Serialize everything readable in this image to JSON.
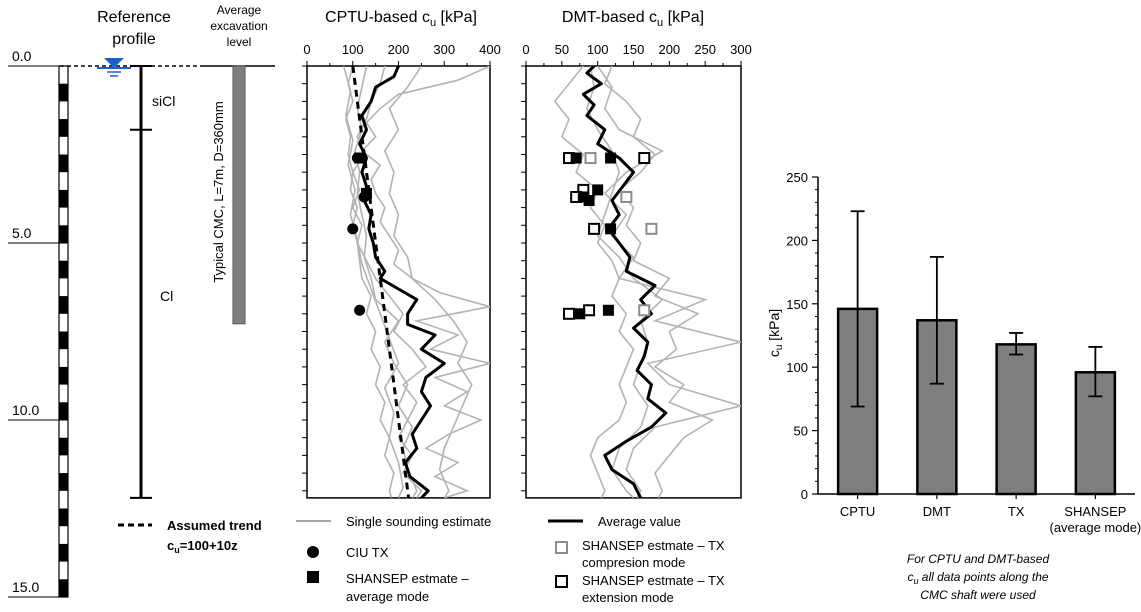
{
  "profile": {
    "title_line1": "Reference",
    "title_line2": "profile",
    "depth_labels": [
      "0.0",
      "5.0",
      "10.0",
      "15.0"
    ],
    "depth_values": [
      0,
      5,
      10,
      15
    ],
    "excavation_line1": "Average",
    "excavation_line2": "excavation",
    "excavation_line3": "level",
    "layer_sicl": "siCl",
    "layer_cl": "Cl",
    "layer_boundary_depth": 1.8,
    "profile_bottom_depth": 12.2,
    "cmc_label": "Typical CMC, L=7m, D=360mm",
    "cmc_length": 7,
    "water_table_icon": "water-table-triangle-icon",
    "colors": {
      "water": "#1f5fcc",
      "cmc": "#7f7f7f"
    }
  },
  "legend": {
    "assumed_trend": "Assumed trend",
    "trend_eq_prefix": "c",
    "trend_eq_sub": "u",
    "trend_eq_suffix": "=100+10z",
    "single_sounding": "Single sounding estimate",
    "average_value": "Average value",
    "ciu_tx": "CIU TX",
    "shansep_avg_line1": "SHANSEP estmate –",
    "shansep_avg_line2": "average mode",
    "shansep_comp_line1": "SHANSEP estmate – TX",
    "shansep_comp_line2": "compresion mode",
    "shansep_ext_line1": "SHANSEP estmate – TX",
    "shansep_ext_line2": "extension mode"
  },
  "chart_data": [
    {
      "type": "line",
      "title_prefix": "CPTU-based c",
      "title_sub": "u",
      "title_suffix": " [kPa]",
      "xlim": [
        0,
        400
      ],
      "xticks": [
        0,
        100,
        200,
        300,
        400
      ],
      "ylim": [
        0,
        12.2
      ],
      "trend": {
        "name": "Assumed trend",
        "intercept": 100,
        "slope": 10
      },
      "average": {
        "name": "Average value",
        "depth": [
          0,
          0.3,
          0.6,
          1.0,
          1.4,
          1.8,
          2.2,
          2.6,
          3.0,
          3.4,
          3.8,
          4.2,
          4.6,
          5.0,
          5.4,
          5.8,
          6.0,
          6.3,
          6.6,
          7.0,
          7.3,
          7.6,
          8.0,
          8.4,
          8.8,
          9.2,
          9.6,
          10.0,
          10.4,
          10.8,
          11.2,
          11.6,
          12.0,
          12.2
        ],
        "cu": [
          200,
          190,
          150,
          140,
          120,
          130,
          115,
          130,
          120,
          130,
          125,
          140,
          135,
          145,
          150,
          170,
          160,
          200,
          240,
          220,
          220,
          280,
          250,
          300,
          260,
          250,
          270,
          250,
          230,
          240,
          215,
          225,
          265,
          250
        ]
      },
      "soundings": [
        {
          "depth": [
            0,
            0.6,
            1.2,
            1.8,
            2.4,
            3.0,
            3.6,
            4.2,
            4.8,
            5.4,
            6.0,
            6.6,
            7.2,
            7.8,
            8.4,
            9.0,
            9.6,
            10.2,
            10.8,
            11.4,
            12.0,
            12.2
          ],
          "cu": [
            250,
            220,
            180,
            200,
            170,
            190,
            180,
            200,
            190,
            220,
            230,
            280,
            320,
            350,
            330,
            360,
            340,
            320,
            300,
            290,
            310,
            300
          ]
        },
        {
          "depth": [
            0,
            0.5,
            1.0,
            1.5,
            2.0,
            2.5,
            3.0,
            3.5,
            4.0,
            4.5,
            5.0,
            5.5,
            6.0,
            6.5,
            7.0,
            7.5,
            8.0,
            8.5,
            9.0,
            9.5,
            10.0,
            10.5,
            11.0,
            11.5,
            12.0,
            12.2
          ],
          "cu": [
            100,
            90,
            100,
            85,
            95,
            90,
            100,
            95,
            110,
            100,
            110,
            115,
            120,
            140,
            130,
            150,
            140,
            160,
            150,
            170,
            160,
            180,
            170,
            190,
            180,
            185
          ]
        },
        {
          "depth": [
            0,
            0.4,
            0.8,
            1.2,
            1.6,
            2.0,
            2.4,
            2.8,
            3.2,
            3.6,
            4.0,
            4.4,
            4.8,
            5.2,
            5.6,
            6.0,
            6.4,
            6.8,
            7.2,
            7.6,
            8.0,
            8.4,
            8.8,
            9.2,
            9.6,
            10.0,
            10.4,
            10.8,
            11.2,
            11.6,
            12.0,
            12.2
          ],
          "cu": [
            400,
            330,
            200,
            160,
            130,
            150,
            120,
            160,
            140,
            150,
            170,
            160,
            180,
            200,
            190,
            230,
            290,
            400,
            240,
            330,
            270,
            400,
            280,
            350,
            300,
            380,
            310,
            260,
            330,
            280,
            350,
            300
          ]
        },
        {
          "depth": [
            0,
            0.6,
            1.2,
            1.8,
            2.4,
            3.0,
            3.6,
            4.2,
            4.8,
            5.4,
            6.0,
            6.6,
            7.2,
            7.8,
            8.4,
            9.0,
            9.6,
            10.2,
            10.8,
            11.4,
            12.0,
            12.2
          ],
          "cu": [
            130,
            120,
            110,
            120,
            105,
            115,
            110,
            120,
            130,
            125,
            140,
            150,
            200,
            170,
            190,
            220,
            200,
            230,
            210,
            220,
            240,
            230
          ]
        },
        {
          "depth": [
            0,
            0.5,
            1.0,
            1.5,
            2.0,
            2.5,
            3.0,
            3.5,
            4.0,
            4.5,
            5.0,
            5.5,
            6.0,
            6.5,
            7.0,
            7.5,
            8.0,
            8.5,
            9.0,
            9.5,
            10.0,
            10.5,
            11.0,
            11.5,
            12.0,
            12.2
          ],
          "cu": [
            170,
            160,
            140,
            130,
            110,
            125,
            100,
            115,
            100,
            120,
            110,
            130,
            150,
            180,
            210,
            190,
            230,
            260,
            210,
            240,
            220,
            200,
            230,
            210,
            250,
            240
          ]
        },
        {
          "depth": [
            0,
            0.7,
            1.4,
            2.1,
            2.8,
            3.5,
            4.2,
            4.9,
            5.6,
            6.3,
            7.0,
            7.7,
            8.4,
            9.1,
            9.8,
            10.5,
            11.2,
            11.9,
            12.2
          ],
          "cu": [
            80,
            95,
            85,
            100,
            90,
            105,
            95,
            110,
            120,
            140,
            160,
            180,
            200,
            170,
            190,
            180,
            200,
            210,
            200
          ]
        }
      ],
      "ciu_tx": {
        "name": "CIU TX",
        "depth": [
          2.6,
          3.7,
          4.6,
          6.9
        ],
        "cu": [
          110,
          125,
          100,
          115
        ]
      },
      "shansep_avg": {
        "name": "SHANSEP estmate – average mode",
        "depth": [
          2.6,
          3.6
        ],
        "cu": [
          115,
          130
        ]
      }
    },
    {
      "type": "line",
      "title_prefix": "DMT-based c",
      "title_sub": "u",
      "title_suffix": " [kPa]",
      "xlim": [
        0,
        300
      ],
      "xticks": [
        0,
        50,
        100,
        150,
        200,
        250,
        300
      ],
      "ylim": [
        0,
        12.2
      ],
      "average": {
        "name": "Average value",
        "depth": [
          0,
          0.2,
          0.5,
          0.8,
          1.1,
          1.4,
          1.8,
          2.2,
          2.6,
          3.0,
          3.4,
          3.8,
          4.2,
          4.6,
          5.0,
          5.4,
          5.8,
          6.2,
          6.6,
          7.0,
          7.4,
          7.8,
          8.2,
          8.6,
          9.0,
          9.4,
          9.8,
          10.2,
          10.6,
          11.0,
          11.4,
          11.8,
          12.2
        ],
        "cu": [
          95,
          85,
          105,
          80,
          95,
          85,
          110,
          100,
          130,
          150,
          135,
          120,
          130,
          115,
          130,
          145,
          140,
          180,
          160,
          175,
          150,
          170,
          165,
          155,
          175,
          170,
          195,
          175,
          140,
          110,
          120,
          150,
          160
        ]
      },
      "soundings": [
        {
          "depth": [
            0,
            0.5,
            1.0,
            1.5,
            2.0,
            2.5,
            3.0,
            3.5,
            4.0,
            4.5,
            5.0,
            5.5,
            6.0,
            6.5,
            7.0,
            7.5,
            8.0,
            8.5,
            9.0,
            9.5,
            10.0,
            10.5,
            11.0,
            11.5,
            12.0,
            12.2
          ],
          "cu": [
            120,
            110,
            140,
            160,
            150,
            180,
            160,
            130,
            150,
            140,
            160,
            150,
            200,
            180,
            240,
            200,
            210,
            180,
            220,
            200,
            260,
            220,
            200,
            180,
            190,
            185
          ]
        },
        {
          "depth": [
            0,
            0.5,
            1.0,
            1.5,
            2.0,
            2.5,
            3.0,
            3.5,
            4.0,
            4.5,
            5.0,
            5.5,
            6.0,
            6.5,
            7.0,
            7.5,
            8.0,
            8.5,
            9.0,
            9.5,
            10.0,
            10.5,
            11.0,
            11.5,
            12.0,
            12.2
          ],
          "cu": [
            80,
            60,
            40,
            60,
            50,
            80,
            70,
            100,
            90,
            110,
            100,
            120,
            130,
            120,
            140,
            130,
            150,
            140,
            130,
            140,
            130,
            100,
            90,
            100,
            110,
            105
          ]
        },
        {
          "depth": [
            0,
            0.6,
            1.2,
            1.8,
            2.4,
            3.0,
            3.6,
            4.2,
            4.8,
            5.4,
            6.0,
            6.6,
            7.2,
            7.8,
            8.4,
            9.0,
            9.6,
            10.2,
            10.8,
            11.4,
            12.0,
            12.2
          ],
          "cu": [
            100,
            120,
            110,
            130,
            190,
            140,
            110,
            140,
            120,
            150,
            130,
            250,
            180,
            300,
            170,
            200,
            300,
            180,
            150,
            140,
            160,
            155
          ]
        },
        {
          "depth": [
            0,
            0.6,
            1.2,
            1.8,
            2.4,
            3.0,
            3.6,
            4.2,
            4.8,
            5.4,
            6.0,
            6.6,
            7.2,
            7.8,
            8.4,
            9.0,
            9.6,
            10.2,
            10.8,
            11.4,
            12.0,
            12.2
          ],
          "cu": [
            90,
            95,
            85,
            100,
            120,
            130,
            120,
            110,
            100,
            130,
            150,
            190,
            160,
            170,
            160,
            150,
            170,
            160,
            130,
            120,
            140,
            150
          ]
        }
      ],
      "shansep_avg": {
        "name": "SHANSEP estmate – average mode",
        "depth": [
          2.6,
          2.6,
          3.5,
          3.8,
          3.7,
          4.6,
          7.0,
          6.9
        ],
        "cu": [
          70,
          118,
          100,
          88,
          80,
          118,
          75,
          115
        ]
      },
      "shansep_comp": {
        "name": "SHANSEP estmate – TX compresion mode",
        "depth": [
          2.6,
          3.7,
          4.6,
          6.9
        ],
        "cu": [
          90,
          140,
          175,
          165
        ]
      },
      "shansep_ext": {
        "name": "SHANSEP estmate – TX extension mode",
        "depth": [
          2.6,
          2.6,
          3.5,
          3.7,
          4.6,
          7.0,
          6.9
        ],
        "cu": [
          60,
          165,
          80,
          70,
          95,
          60,
          88
        ]
      }
    },
    {
      "type": "bar",
      "categories": [
        "CPTU",
        "DMT",
        "TX",
        "SHANSEP"
      ],
      "category_sublabels": [
        "",
        "",
        "",
        "(average mode)"
      ],
      "values": [
        146,
        137,
        118,
        96
      ],
      "error_low": [
        69,
        87,
        110,
        77
      ],
      "error_high": [
        223,
        187,
        127,
        116
      ],
      "ylim": [
        0,
        250
      ],
      "yticks": [
        0,
        50,
        100,
        150,
        200,
        250
      ],
      "ylabel_prefix": "c",
      "ylabel_sub": "u",
      "ylabel_suffix": " [kPa]",
      "bar_color": "#7f7f7f",
      "caption_line1": "For CPTU and DMT-based",
      "caption_line2_prefix": "c",
      "caption_line2_sub": "u",
      "caption_line2_suffix": " all data points along the",
      "caption_line3": "CMC shaft were used"
    }
  ]
}
